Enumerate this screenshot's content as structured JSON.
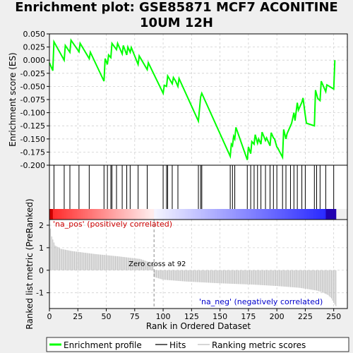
{
  "title_lines": [
    "Enrichment plot: GSE85871 MCF7 ACONITINE",
    "10UM 12H"
  ],
  "colors": {
    "es_line": "#00ff00",
    "hits": "#000000",
    "metric": "#bebebe",
    "pos": "#ff0000",
    "neg": "#0000ff",
    "grid": "#d0d0d0",
    "pos_text": "#cc0000",
    "neg_text": "#0000cc"
  },
  "chart_data": [
    {
      "type": "line",
      "name": "enrichment",
      "ylabel": "Enrichment score (ES)",
      "ylim": [
        -0.2,
        0.05
      ],
      "yticks": [
        0.05,
        0.025,
        0.0,
        -0.025,
        -0.05,
        -0.075,
        -0.1,
        -0.125,
        -0.15,
        -0.175,
        -0.2
      ],
      "ytick_labels": [
        "0.050",
        "0.025",
        "0.000",
        "-0.025",
        "-0.050",
        "-0.075",
        "-0.100",
        "-0.125",
        "-0.150",
        "-0.175",
        "-0.200"
      ],
      "x": [
        0,
        3,
        4,
        13,
        14,
        18,
        19,
        26,
        27,
        35,
        36,
        48,
        49,
        51,
        52,
        54,
        55,
        59,
        60,
        64,
        65,
        68,
        69,
        71,
        72,
        78,
        79,
        86,
        87,
        100,
        101,
        103,
        104,
        108,
        109,
        111,
        113,
        114,
        131,
        133,
        134,
        159,
        160,
        161,
        162,
        163,
        164,
        174,
        175,
        177,
        178,
        180,
        181,
        183,
        184,
        186,
        187,
        190,
        191,
        194,
        195,
        197,
        198,
        200,
        201,
        205,
        206,
        208,
        209,
        212,
        213,
        215,
        216,
        218,
        219,
        222,
        223,
        225,
        226,
        233,
        234,
        235,
        236,
        238,
        239,
        243,
        244,
        250,
        251
      ],
      "y": [
        -0.005,
        -0.02,
        0.035,
        0.0,
        0.028,
        0.015,
        0.038,
        0.016,
        0.032,
        0.003,
        0.015,
        -0.04,
        0.003,
        -0.008,
        0.01,
        0.005,
        0.032,
        0.02,
        0.032,
        0.012,
        0.028,
        0.01,
        0.025,
        0.015,
        0.024,
        -0.008,
        0.008,
        -0.018,
        -0.005,
        -0.063,
        -0.048,
        -0.05,
        -0.03,
        -0.045,
        -0.033,
        -0.04,
        -0.05,
        -0.035,
        -0.116,
        -0.07,
        -0.063,
        -0.183,
        -0.16,
        -0.163,
        -0.145,
        -0.15,
        -0.128,
        -0.19,
        -0.165,
        -0.178,
        -0.155,
        -0.16,
        -0.142,
        -0.158,
        -0.15,
        -0.16,
        -0.137,
        -0.153,
        -0.148,
        -0.163,
        -0.138,
        -0.148,
        -0.15,
        -0.165,
        -0.168,
        -0.185,
        -0.132,
        -0.15,
        -0.14,
        -0.125,
        -0.12,
        -0.1,
        -0.115,
        -0.081,
        -0.095,
        -0.08,
        -0.072,
        -0.105,
        -0.12,
        -0.125,
        -0.057,
        -0.065,
        -0.073,
        -0.077,
        -0.04,
        -0.06,
        -0.047,
        -0.055,
        0.0
      ]
    },
    {
      "type": "hits",
      "name": "hits",
      "x": [
        4,
        13,
        18,
        26,
        35,
        48,
        51,
        54,
        55,
        59,
        64,
        68,
        71,
        78,
        86,
        100,
        103,
        104,
        108,
        113,
        131,
        133,
        134,
        159,
        161,
        163,
        174,
        177,
        180,
        183,
        186,
        190,
        194,
        197,
        200,
        205,
        208,
        212,
        215,
        218,
        222,
        225,
        233,
        235,
        238,
        243,
        250
      ]
    },
    {
      "type": "area",
      "name": "ranking metric",
      "ylabel": "Ranked list metric (PreRanked)",
      "xlabel": "Rank in Ordered Dataset",
      "xlim": [
        0,
        262
      ],
      "ylim": [
        -1.7,
        2.25
      ],
      "xticks": [
        0,
        25,
        50,
        75,
        100,
        125,
        150,
        175,
        200,
        225,
        250
      ],
      "yticks": [
        2,
        1,
        0,
        -1
      ],
      "x": [
        0,
        2,
        5,
        10,
        20,
        40,
        60,
        80,
        91,
        92,
        100,
        120,
        150,
        180,
        200,
        220,
        235,
        240,
        245,
        248,
        250,
        252
      ],
      "y": [
        2.2,
        1.5,
        1.1,
        0.95,
        0.85,
        0.72,
        0.62,
        0.5,
        0.3,
        -0.3,
        -0.42,
        -0.5,
        -0.58,
        -0.64,
        -0.7,
        -0.78,
        -0.9,
        -0.98,
        -1.1,
        -1.25,
        -1.45,
        -1.6
      ],
      "zero_cross": 92,
      "zero_cross_label": "Zero cross at 92",
      "pos_label": "'na_pos' (positively correlated)",
      "neg_label": "'na_neg' (negatively correlated)"
    }
  ],
  "legend": [
    {
      "label": "Enrichment profile",
      "color": "#00ff00",
      "style": "thick"
    },
    {
      "label": "Hits",
      "color": "#000000",
      "style": "thin"
    },
    {
      "label": "Ranking metric scores",
      "color": "#bebebe",
      "style": "thin"
    }
  ]
}
